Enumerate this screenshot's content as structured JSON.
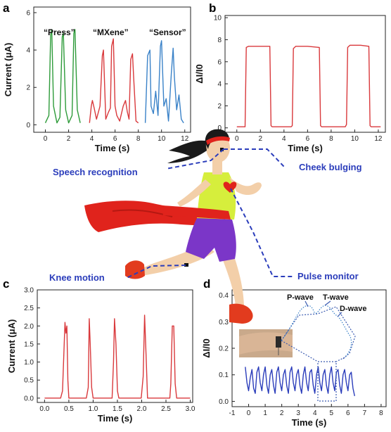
{
  "colors": {
    "green": "#2e9b3a",
    "red": "#d9393c",
    "blue": "#3a82c8",
    "navy": "#2b3dbb",
    "skin": "#f3cfa9",
    "shirt": "#d6ee3c",
    "shorts": "#7b36c8",
    "cape": "#e0231c",
    "hair": "#1a1a1a",
    "shoe": "#e23b1e"
  },
  "chart_data": [
    {
      "panel": "a",
      "type": "line",
      "xlabel": "Time (s)",
      "ylabel": "Current (μA)",
      "xlim": [
        -1,
        12.5
      ],
      "ylim": [
        -0.4,
        6.3
      ],
      "xticks": [
        0,
        2,
        4,
        6,
        8,
        10,
        12
      ],
      "yticks": [
        0,
        2,
        4,
        6
      ],
      "annotations": [
        "“Press”",
        "“MXene”",
        "“Sensor”"
      ],
      "series": [
        {
          "key": "press",
          "color": "green",
          "x": [
            0,
            0.3,
            0.45,
            0.55,
            0.7,
            1.0,
            1.25,
            1.45,
            1.55,
            1.75,
            2.0,
            2.3,
            2.45,
            2.55,
            2.75,
            3.0
          ],
          "y": [
            0.1,
            0.5,
            4.8,
            5.1,
            1.0,
            0.1,
            0.4,
            4.7,
            4.9,
            0.8,
            0.1,
            0.5,
            4.9,
            5.1,
            0.8,
            0.1
          ]
        },
        {
          "key": "mxene",
          "color": "red",
          "x": [
            3.8,
            3.95,
            4.05,
            4.2,
            4.4,
            4.7,
            4.9,
            5.0,
            5.2,
            5.45,
            5.6,
            5.7,
            5.85,
            6.0,
            6.15,
            6.4,
            6.7,
            6.9,
            7.05,
            7.2,
            7.35,
            7.5,
            7.6,
            7.8,
            8.0
          ],
          "y": [
            0.1,
            1.0,
            1.3,
            0.9,
            0.3,
            1.0,
            3.7,
            4.0,
            0.3,
            0.7,
            0.9,
            4.2,
            4.6,
            1.0,
            0.5,
            0.2,
            1.0,
            1.3,
            0.7,
            0.3,
            3.5,
            3.8,
            2.5,
            0.2,
            0.1
          ]
        },
        {
          "key": "sensor",
          "color": "blue",
          "x": [
            8.6,
            8.8,
            9.0,
            9.1,
            9.3,
            9.5,
            9.7,
            9.9,
            10.0,
            10.2,
            10.4,
            10.6,
            10.85,
            11.0,
            11.1,
            11.3,
            11.5,
            11.7,
            11.9
          ],
          "y": [
            0.1,
            3.7,
            4.0,
            1.0,
            0.6,
            1.8,
            0.5,
            4.2,
            4.5,
            1.0,
            1.4,
            0.2,
            2.8,
            4.1,
            2.6,
            0.8,
            1.6,
            0.3,
            0.1
          ]
        }
      ]
    },
    {
      "panel": "b",
      "type": "line",
      "xlabel": "Time (s)",
      "ylabel": "ΔI/I0",
      "xlim": [
        -1,
        12.6
      ],
      "ylim": [
        -0.4,
        10.2
      ],
      "xticks": [
        0,
        2,
        4,
        6,
        8,
        10,
        12
      ],
      "yticks": [
        0,
        2,
        4,
        6,
        8,
        10
      ],
      "series": [
        {
          "key": "cheek",
          "color": "red",
          "x": [
            0,
            0.7,
            0.8,
            1.0,
            2.0,
            2.8,
            2.9,
            3.0,
            4.6,
            4.7,
            4.8,
            5.0,
            6.0,
            7.0,
            7.1,
            7.2,
            9.2,
            9.3,
            9.4,
            9.6,
            10.5,
            11.2,
            11.3,
            11.4,
            12.2
          ],
          "y": [
            0.1,
            0.1,
            7.3,
            7.4,
            7.4,
            7.4,
            0.2,
            0.1,
            0.1,
            0.2,
            7.2,
            7.4,
            7.4,
            7.3,
            0.2,
            0.1,
            0.1,
            0.3,
            7.3,
            7.5,
            7.5,
            7.4,
            0.2,
            0.1,
            0.1
          ]
        }
      ]
    },
    {
      "panel": "c",
      "type": "line",
      "xlabel": "Time (s)",
      "ylabel": "Current (μA)",
      "xlim": [
        -0.15,
        3.05
      ],
      "ylim": [
        -0.12,
        3.0
      ],
      "xticks": [
        0.0,
        0.5,
        1.0,
        1.5,
        2.0,
        2.5,
        3.0
      ],
      "xtick_labels": [
        "0.0",
        "0.5",
        "1.0",
        "1.5",
        "2.0",
        "2.5",
        "3.0"
      ],
      "yticks": [
        0.0,
        0.5,
        1.0,
        1.5,
        2.0,
        2.5,
        3.0
      ],
      "ytick_labels": [
        "0.0",
        "0.5",
        "1.0",
        "1.5",
        "2.0",
        "2.5",
        "3.0"
      ],
      "series": [
        {
          "key": "knee",
          "color": "red",
          "x": [
            0,
            0.33,
            0.37,
            0.42,
            0.44,
            0.46,
            0.48,
            0.5,
            0.86,
            0.9,
            0.92,
            0.94,
            0.97,
            1.0,
            1.39,
            1.42,
            1.44,
            1.47,
            1.5,
            1.53,
            1.99,
            2.03,
            2.06,
            2.09,
            2.12,
            2.58,
            2.6,
            2.63,
            2.66,
            2.69,
            2.72,
            3.0
          ],
          "y": [
            0,
            0,
            0.2,
            2.1,
            1.8,
            2.0,
            0.5,
            0,
            0,
            0.3,
            2.2,
            1.5,
            0.3,
            0,
            0,
            1.0,
            2.2,
            1.5,
            0.2,
            0,
            0,
            0.6,
            2.3,
            1.2,
            0,
            0,
            0.4,
            2.0,
            2.0,
            0.4,
            0,
            0
          ]
        }
      ]
    },
    {
      "panel": "d",
      "type": "line",
      "xlabel": "Time (s)",
      "ylabel": "ΔI/I0",
      "xlim": [
        -1,
        8.3
      ],
      "ylim": [
        -0.02,
        0.42
      ],
      "xticks": [
        -1,
        0,
        1,
        2,
        3,
        4,
        5,
        6,
        7,
        8
      ],
      "yticks": [
        0.0,
        0.1,
        0.2,
        0.3,
        0.4
      ],
      "ytick_labels": [
        "0.0",
        "0.1",
        "0.2",
        "0.3",
        "0.4"
      ],
      "annotations": [
        "P-wave",
        "T-wave",
        "D-wave"
      ],
      "series": [
        {
          "key": "pulse",
          "color": "navy",
          "x": [
            -0.2,
            -0.1,
            0.0,
            0.1,
            0.2,
            0.3,
            0.4,
            0.5,
            0.6,
            0.7,
            0.8,
            0.9,
            1.0,
            1.1,
            1.2,
            1.3,
            1.4,
            1.5,
            1.6,
            1.7,
            1.8,
            1.9,
            2.0,
            2.1,
            2.2,
            2.3,
            2.4,
            2.5,
            2.6,
            2.7,
            2.8,
            2.9,
            3.0,
            3.1,
            3.2,
            3.3,
            3.4,
            3.5,
            3.6,
            3.7,
            3.8,
            3.9,
            4.0,
            4.1,
            4.2,
            4.3,
            4.4,
            4.5,
            4.6,
            4.7,
            4.8,
            4.9,
            5.0,
            5.1,
            5.2,
            5.3,
            5.4,
            5.5,
            5.6,
            5.7,
            5.8,
            5.9,
            6.0,
            6.1,
            6.2,
            6.3,
            6.4
          ],
          "y": [
            0.13,
            0.07,
            0.04,
            0.09,
            0.12,
            0.05,
            0.03,
            0.11,
            0.13,
            0.07,
            0.04,
            0.1,
            0.13,
            0.06,
            0.03,
            0.1,
            0.12,
            0.06,
            0.03,
            0.11,
            0.13,
            0.07,
            0.04,
            0.1,
            0.12,
            0.06,
            0.03,
            0.11,
            0.13,
            0.07,
            0.04,
            0.1,
            0.12,
            0.06,
            0.03,
            0.1,
            0.13,
            0.07,
            0.04,
            0.11,
            0.12,
            0.06,
            0.03,
            0.1,
            0.13,
            0.07,
            0.04,
            0.1,
            0.12,
            0.06,
            0.03,
            0.1,
            0.13,
            0.07,
            0.04,
            0.11,
            0.12,
            0.06,
            0.03,
            0.1,
            0.12,
            0.07,
            0.04,
            0.1,
            0.11,
            0.05,
            0.02
          ]
        }
      ]
    }
  ],
  "labels": {
    "speech": "Speech recognition",
    "cheek": "Cheek bulging",
    "knee": "Knee motion",
    "pulse": "Pulse monitor"
  },
  "panel_letters": [
    "a",
    "b",
    "c",
    "d"
  ]
}
